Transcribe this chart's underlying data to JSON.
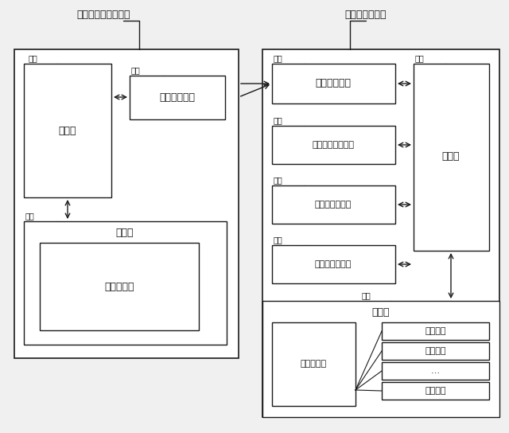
{
  "title_left": "位置管理サーバ３０",
  "title_right": "移動体端末１０",
  "bg_color": "#f0f0f0",
  "box_facecolor": "#ffffff",
  "line_color": "#1a1a1a",
  "text_color": "#1a1a1a",
  "font_size": 9,
  "small_font_size": 8,
  "tiny_font_size": 7,
  "labels": {
    "31": "３１",
    "33": "３３",
    "32": "３２",
    "15": "１５",
    "11": "１１",
    "14": "１４",
    "13": "１３",
    "16": "１６",
    "12": "１２",
    "ctrl_left": "制御部",
    "radio_left": "無線送受信部",
    "mem_left": "記憶部",
    "map_left": "地図データ",
    "radio_right": "無線送受信部",
    "ctrl_right": "制御部",
    "msg": "メッセージ生成部",
    "pos": "位置情報測定部",
    "send_interval_judge": "送信間隔判定部",
    "mem_right": "記憶部",
    "map_right": "地図データ",
    "si1": "送信間隔",
    "si2": "送信間隔",
    "si3": "…",
    "si4": "送信間隔"
  }
}
